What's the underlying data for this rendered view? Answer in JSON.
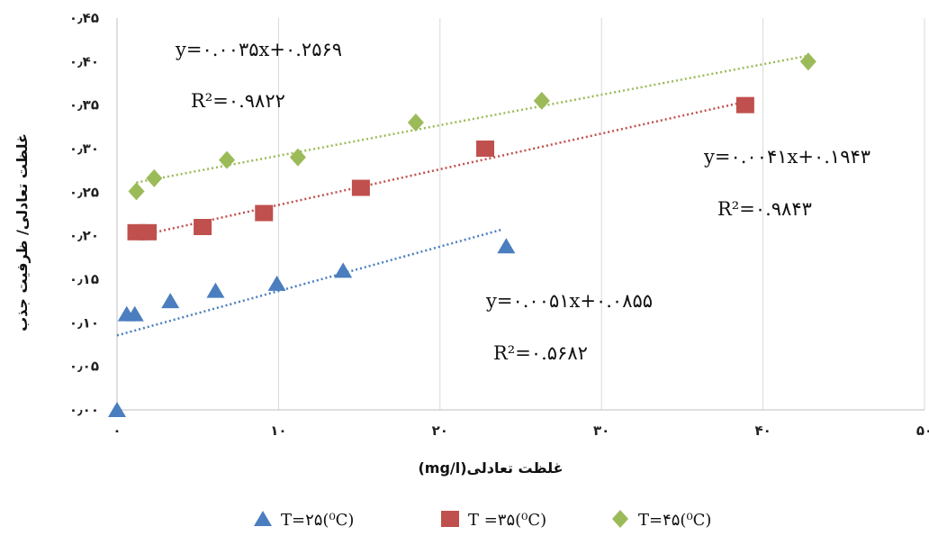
{
  "chart_data": {
    "type": "scatter",
    "xlabel": "غلظت تعادلی(mg/l)",
    "ylabel": "غلظت تعادلی/ ظرفیت جذب",
    "xlim": [
      0,
      50
    ],
    "ylim": [
      0,
      0.45
    ],
    "x_ticks": [
      0,
      10,
      20,
      30,
      40,
      50
    ],
    "x_tick_labels": [
      "۰",
      "۱۰",
      "۲۰",
      "۳۰",
      "۴۰",
      "۵۰"
    ],
    "y_ticks": [
      0,
      0.05,
      0.1,
      0.15,
      0.2,
      0.25,
      0.3,
      0.35,
      0.4,
      0.45
    ],
    "y_tick_labels": [
      "۰٫۰۰",
      "۰٫۰۵",
      "۰٫۱۰",
      "۰٫۱۵",
      "۰٫۲۰",
      "۰٫۲۵",
      "۰٫۳۰",
      "۰٫۳۵",
      "۰٫۴۰",
      "۰٫۴۵"
    ],
    "grid": "vertical",
    "legend_position": "bottom",
    "series": [
      {
        "name": "T=۲۵(⁰C)",
        "marker": "triangle",
        "color": "#4a7ebf",
        "points": [
          [
            0,
            0
          ],
          [
            0.6,
            0.11
          ],
          [
            1.1,
            0.11
          ],
          [
            3.3,
            0.125
          ],
          [
            6.1,
            0.137
          ],
          [
            9.9,
            0.145
          ],
          [
            14.0,
            0.16
          ],
          [
            24.1,
            0.188
          ]
        ],
        "trendline": {
          "slope": 0.0051,
          "intercept": 0.0855,
          "x_range": [
            0,
            23.8
          ]
        },
        "equation": "y=۰.۰۰۵۱x+۰.۰۸۵۵",
        "r2": "R²=۰.۵۶۸۲"
      },
      {
        "name": "T =۳۵(⁰C)",
        "marker": "square",
        "color": "#c0504d",
        "points": [
          [
            1.2,
            0.204
          ],
          [
            1.9,
            0.204
          ],
          [
            5.3,
            0.21
          ],
          [
            9.1,
            0.226
          ],
          [
            15.1,
            0.255
          ],
          [
            22.8,
            0.3
          ],
          [
            38.9,
            0.35
          ]
        ],
        "trendline": {
          "slope": 0.0041,
          "intercept": 0.1943,
          "x_range": [
            1.0,
            38.9
          ]
        },
        "equation": "y=۰.۰۰۴۱x+۰.۱۹۴۳",
        "r2": "R²=۰.۹۸۴۳"
      },
      {
        "name": "T=۴۵(⁰C)",
        "marker": "diamond",
        "color": "#9bbb59",
        "points": [
          [
            1.2,
            0.251
          ],
          [
            2.3,
            0.266
          ],
          [
            6.8,
            0.287
          ],
          [
            11.2,
            0.29
          ],
          [
            18.5,
            0.33
          ],
          [
            26.3,
            0.355
          ],
          [
            42.8,
            0.4
          ]
        ],
        "trendline": {
          "slope": 0.0035,
          "intercept": 0.2569,
          "x_range": [
            1.2,
            42.8
          ]
        },
        "equation": "y=۰.۰۰۳۵x+۰.۲۵۶۹",
        "r2": "R²=۰.۹۸۲۲"
      }
    ]
  }
}
